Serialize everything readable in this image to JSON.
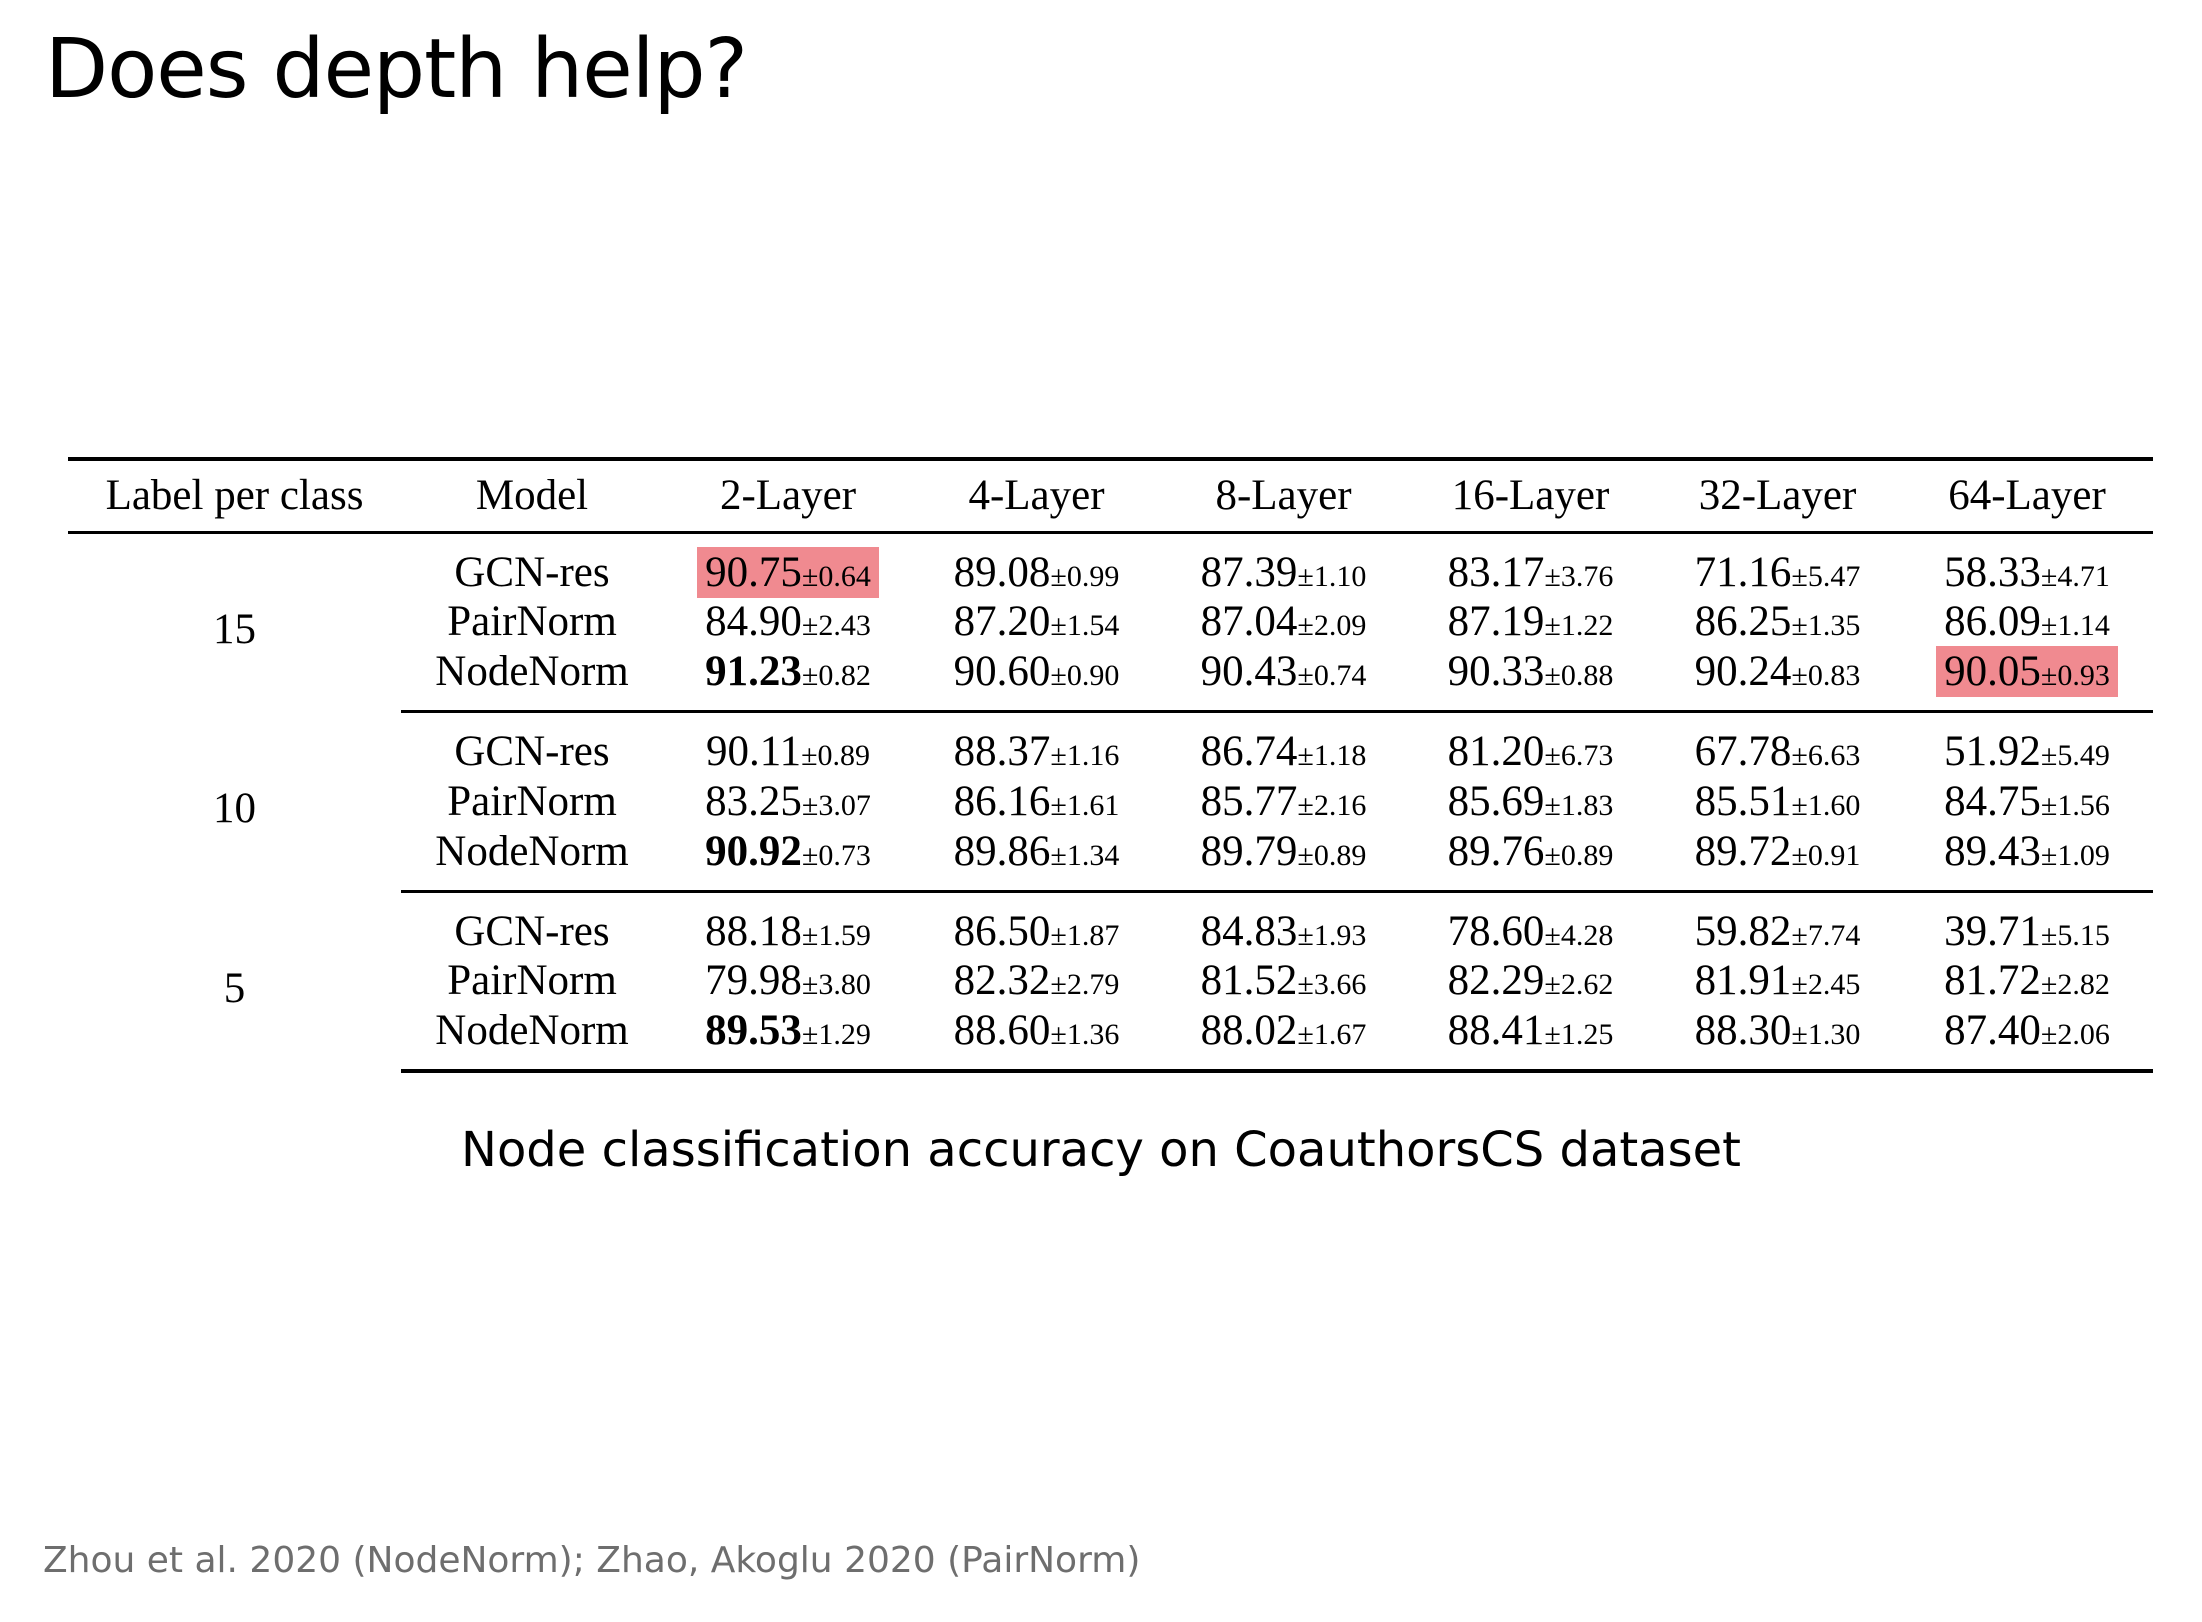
{
  "slide": {
    "title": "Does depth help?",
    "caption": "Node classification accuracy on CoauthorsCS dataset",
    "citation": "Zhou et al. 2020 (NodeNorm); Zhao, Akoglu 2020 (PairNorm)"
  },
  "table": {
    "headers": [
      "Label per class",
      "Model",
      "2-Layer",
      "4-Layer",
      "8-Layer",
      "16-Layer",
      "32-Layer",
      "64-Layer"
    ],
    "highlight_color": "#f08a90",
    "groups": [
      {
        "label": "15",
        "rows": [
          {
            "model": "GCN-res",
            "cells": [
              {
                "v": "90.75",
                "s": "±0.64",
                "hl": true
              },
              {
                "v": "89.08",
                "s": "±0.99"
              },
              {
                "v": "87.39",
                "s": "±1.10"
              },
              {
                "v": "83.17",
                "s": "±3.76"
              },
              {
                "v": "71.16",
                "s": "±5.47"
              },
              {
                "v": "58.33",
                "s": "±4.71"
              }
            ]
          },
          {
            "model": "PairNorm",
            "cells": [
              {
                "v": "84.90",
                "s": "±2.43"
              },
              {
                "v": "87.20",
                "s": "±1.54"
              },
              {
                "v": "87.04",
                "s": "±2.09"
              },
              {
                "v": "87.19",
                "s": "±1.22"
              },
              {
                "v": "86.25",
                "s": "±1.35"
              },
              {
                "v": "86.09",
                "s": "±1.14"
              }
            ]
          },
          {
            "model": "NodeNorm",
            "cells": [
              {
                "v": "91.23",
                "s": "±0.82",
                "bold": true
              },
              {
                "v": "90.60",
                "s": "±0.90"
              },
              {
                "v": "90.43",
                "s": "±0.74"
              },
              {
                "v": "90.33",
                "s": "±0.88"
              },
              {
                "v": "90.24",
                "s": "±0.83"
              },
              {
                "v": "90.05",
                "s": "±0.93",
                "hl": true
              }
            ]
          }
        ]
      },
      {
        "label": "10",
        "rows": [
          {
            "model": "GCN-res",
            "cells": [
              {
                "v": "90.11",
                "s": "±0.89"
              },
              {
                "v": "88.37",
                "s": "±1.16"
              },
              {
                "v": "86.74",
                "s": "±1.18"
              },
              {
                "v": "81.20",
                "s": "±6.73"
              },
              {
                "v": "67.78",
                "s": "±6.63"
              },
              {
                "v": "51.92",
                "s": "±5.49"
              }
            ]
          },
          {
            "model": "PairNorm",
            "cells": [
              {
                "v": "83.25",
                "s": "±3.07"
              },
              {
                "v": "86.16",
                "s": "±1.61"
              },
              {
                "v": "85.77",
                "s": "±2.16"
              },
              {
                "v": "85.69",
                "s": "±1.83"
              },
              {
                "v": "85.51",
                "s": "±1.60"
              },
              {
                "v": "84.75",
                "s": "±1.56"
              }
            ]
          },
          {
            "model": "NodeNorm",
            "cells": [
              {
                "v": "90.92",
                "s": "±0.73",
                "bold": true
              },
              {
                "v": "89.86",
                "s": "±1.34"
              },
              {
                "v": "89.79",
                "s": "±0.89"
              },
              {
                "v": "89.76",
                "s": "±0.89"
              },
              {
                "v": "89.72",
                "s": "±0.91"
              },
              {
                "v": "89.43",
                "s": "±1.09"
              }
            ]
          }
        ]
      },
      {
        "label": "5",
        "rows": [
          {
            "model": "GCN-res",
            "cells": [
              {
                "v": "88.18",
                "s": "±1.59"
              },
              {
                "v": "86.50",
                "s": "±1.87"
              },
              {
                "v": "84.83",
                "s": "±1.93"
              },
              {
                "v": "78.60",
                "s": "±4.28"
              },
              {
                "v": "59.82",
                "s": "±7.74"
              },
              {
                "v": "39.71",
                "s": "±5.15"
              }
            ]
          },
          {
            "model": "PairNorm",
            "cells": [
              {
                "v": "79.98",
                "s": "±3.80"
              },
              {
                "v": "82.32",
                "s": "±2.79"
              },
              {
                "v": "81.52",
                "s": "±3.66"
              },
              {
                "v": "82.29",
                "s": "±2.62"
              },
              {
                "v": "81.91",
                "s": "±2.45"
              },
              {
                "v": "81.72",
                "s": "±2.82"
              }
            ]
          },
          {
            "model": "NodeNorm",
            "cells": [
              {
                "v": "89.53",
                "s": "±1.29",
                "bold": true
              },
              {
                "v": "88.60",
                "s": "±1.36"
              },
              {
                "v": "88.02",
                "s": "±1.67"
              },
              {
                "v": "88.41",
                "s": "±1.25"
              },
              {
                "v": "88.30",
                "s": "±1.30"
              },
              {
                "v": "87.40",
                "s": "±2.06"
              }
            ]
          }
        ]
      }
    ]
  }
}
